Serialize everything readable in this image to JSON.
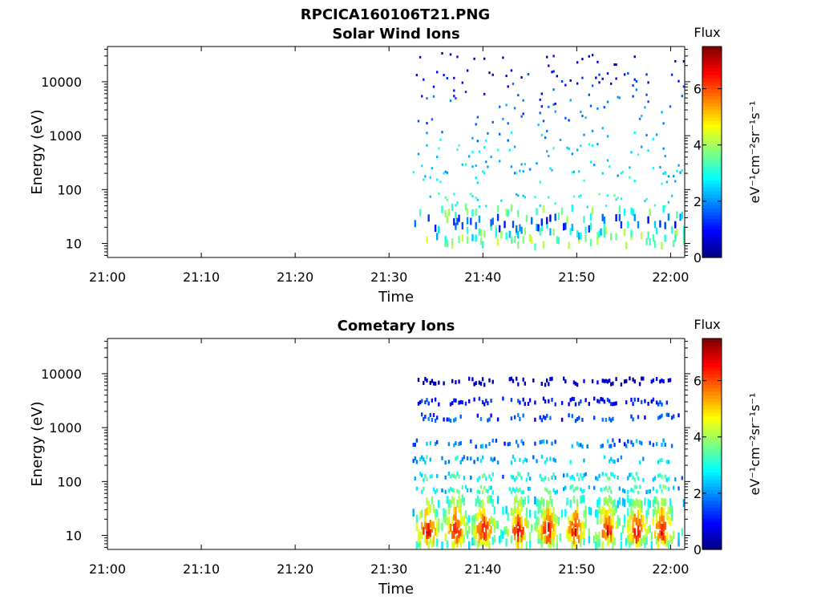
{
  "figure": {
    "title": "RPCICA160106T21.PNG"
  },
  "colors": {
    "jet": [
      "#00007f",
      "#0000ff",
      "#007fff",
      "#00ffff",
      "#7fff7f",
      "#ffff00",
      "#ff7f00",
      "#ff0000",
      "#7f0000"
    ]
  },
  "chart_data": [
    {
      "type": "heatmap",
      "title": "Solar Wind Ions",
      "xlabel": "Time",
      "ylabel": "Energy (eV)",
      "x_ticks": [
        "21:00",
        "21:10",
        "21:20",
        "21:30",
        "21:40",
        "21:50",
        "22:00"
      ],
      "xlim_minutes": [
        0,
        61.5
      ],
      "y_scale": "log",
      "y_ticks": [
        "10",
        "100",
        "1000",
        "10000"
      ],
      "ylim": [
        5.5,
        45000
      ],
      "colorbar": {
        "label": "Flux",
        "unit": "eV⁻¹cm⁻²sr⁻¹s⁻¹",
        "ticks": [
          "0",
          "2",
          "4",
          "6"
        ],
        "range": [
          0,
          7.5
        ]
      },
      "data_start_minute": 32.5,
      "energy_bands": [
        {
          "energy": 12,
          "flux": 3.8
        },
        {
          "energy": 15,
          "flux": 3.5
        },
        {
          "energy": 18,
          "flux": 2.5
        },
        {
          "energy": 25,
          "flux": 1.5
        },
        {
          "energy": 38,
          "flux": 3.4
        },
        {
          "energy": 60,
          "flux": 3.0
        },
        {
          "energy": 160,
          "flux": 2.6
        },
        {
          "energy": 250,
          "flux": 2.4
        },
        {
          "energy": 500,
          "flux": 2.6
        },
        {
          "energy": 1000,
          "flux": 2.2
        },
        {
          "energy": 2000,
          "flux": 1.8
        },
        {
          "energy": 4000,
          "flux": 1.6
        },
        {
          "energy": 7000,
          "flux": 1.2
        },
        {
          "energy": 12000,
          "flux": 1.0
        },
        {
          "energy": 25000,
          "flux": 0.4
        }
      ]
    },
    {
      "type": "heatmap",
      "title": "Cometary Ions",
      "xlabel": "Time",
      "ylabel": "Energy (eV)",
      "x_ticks": [
        "21:00",
        "21:10",
        "21:20",
        "21:30",
        "21:40",
        "21:50",
        "22:00"
      ],
      "xlim_minutes": [
        0,
        61.5
      ],
      "y_scale": "log",
      "y_ticks": [
        "10",
        "100",
        "1000",
        "10000"
      ],
      "ylim": [
        5.5,
        45000
      ],
      "colorbar": {
        "label": "Flux",
        "unit": "eV⁻¹cm⁻²sr⁻¹s⁻¹",
        "ticks": [
          "0",
          "2",
          "4",
          "6"
        ],
        "range": [
          0,
          7.5
        ]
      },
      "data_start_minute": 32.5,
      "burst_minutes": [
        34.0,
        37.0,
        40.0,
        43.7,
        46.8,
        49.8,
        53.2,
        56.3,
        59.0
      ],
      "energy_bands": [
        {
          "energy": 8,
          "flux": 4.2
        },
        {
          "energy": 10,
          "flux": 5.3
        },
        {
          "energy": 13,
          "flux": 5.9
        },
        {
          "energy": 17,
          "flux": 5.6
        },
        {
          "energy": 22,
          "flux": 5.0
        },
        {
          "energy": 30,
          "flux": 4.4
        },
        {
          "energy": 45,
          "flux": 3.8
        },
        {
          "energy": 70,
          "flux": 3.3
        },
        {
          "energy": 120,
          "flux": 3.0
        },
        {
          "energy": 250,
          "flux": 2.6
        },
        {
          "energy": 500,
          "flux": 2.0
        },
        {
          "energy": 1500,
          "flux": 1.6
        },
        {
          "energy": 3000,
          "flux": 1.2
        },
        {
          "energy": 7000,
          "flux": 0.5
        }
      ]
    }
  ]
}
